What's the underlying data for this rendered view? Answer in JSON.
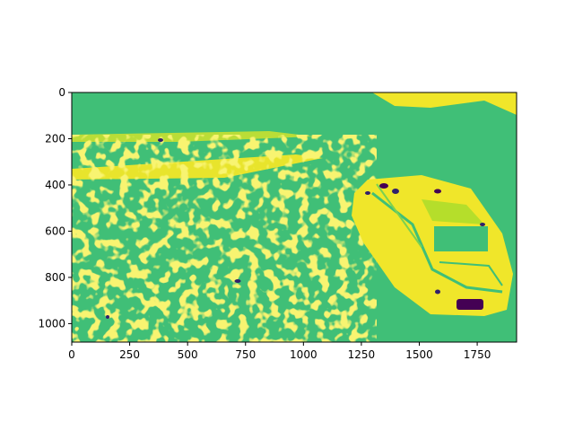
{
  "figure": {
    "x_ticks": [
      "0",
      "250",
      "500",
      "750",
      "1000",
      "1250",
      "1500",
      "1750"
    ],
    "y_ticks": [
      "0",
      "200",
      "400",
      "600",
      "800",
      "1000"
    ],
    "x_tick_values": [
      0,
      250,
      500,
      750,
      1000,
      1250,
      1500,
      1750
    ],
    "y_tick_values": [
      0,
      200,
      400,
      600,
      800,
      1000
    ],
    "x_range": [
      0,
      1920
    ],
    "y_range": [
      1080,
      0
    ],
    "colormap": "viridis",
    "colors": {
      "background": "#40bf77",
      "highlight": "#f0e62a",
      "mid": "#8fd744",
      "dark": "#31206b",
      "darkest": "#440154"
    }
  }
}
